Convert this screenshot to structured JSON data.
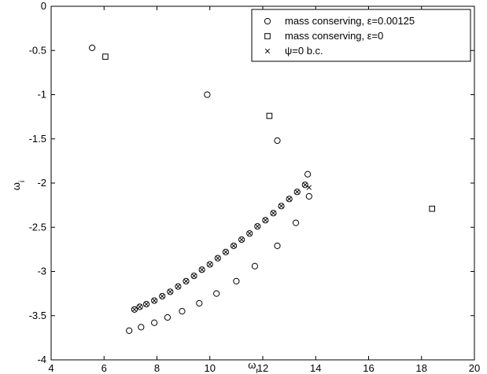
{
  "chart_data": {
    "type": "scatter",
    "xlabel": "ω",
    "xlabel_sub": "r",
    "ylabel": "ω",
    "ylabel_sub": "i",
    "xlim": [
      4,
      20
    ],
    "ylim": [
      -4,
      0
    ],
    "xticks": [
      4,
      6,
      8,
      10,
      12,
      14,
      16,
      18,
      20
    ],
    "yticks": [
      0,
      -0.5,
      -1,
      -1.5,
      -2,
      -2.5,
      -3,
      -3.5,
      -4
    ],
    "xtick_labels": [
      "4",
      "6",
      "8",
      "10",
      "12",
      "14",
      "16",
      "18",
      "20"
    ],
    "ytick_labels": [
      "0",
      "-0.5",
      "-1",
      "-1.5",
      "-2",
      "-2.5",
      "-3",
      "-3.5",
      "-4"
    ],
    "grid": false,
    "legend_position": "top-right",
    "series": [
      {
        "name": "mass conserving, ε=0.00125",
        "marker": "circle",
        "points": [
          [
            5.55,
            -0.47
          ],
          [
            9.9,
            -1.0
          ],
          [
            12.55,
            -1.52
          ],
          [
            13.7,
            -1.9
          ],
          [
            13.75,
            -2.15
          ],
          [
            13.25,
            -2.45
          ],
          [
            12.55,
            -2.71
          ],
          [
            11.7,
            -2.94
          ],
          [
            11.0,
            -3.11
          ],
          [
            10.25,
            -3.25
          ],
          [
            9.6,
            -3.36
          ],
          [
            8.95,
            -3.45
          ],
          [
            8.4,
            -3.52
          ],
          [
            7.9,
            -3.58
          ],
          [
            7.4,
            -3.63
          ],
          [
            6.95,
            -3.67
          ],
          [
            7.15,
            -3.43
          ],
          [
            7.35,
            -3.4
          ],
          [
            7.6,
            -3.37
          ],
          [
            7.9,
            -3.33
          ],
          [
            8.2,
            -3.28
          ],
          [
            8.5,
            -3.23
          ],
          [
            8.8,
            -3.17
          ],
          [
            9.1,
            -3.11
          ],
          [
            9.4,
            -3.05
          ],
          [
            9.7,
            -2.98
          ],
          [
            10.0,
            -2.92
          ],
          [
            10.3,
            -2.85
          ],
          [
            10.6,
            -2.78
          ],
          [
            10.9,
            -2.71
          ],
          [
            11.2,
            -2.64
          ],
          [
            11.5,
            -2.57
          ],
          [
            11.8,
            -2.49
          ],
          [
            12.1,
            -2.42
          ],
          [
            12.4,
            -2.34
          ],
          [
            12.7,
            -2.26
          ],
          [
            13.0,
            -2.18
          ],
          [
            13.3,
            -2.1
          ],
          [
            13.6,
            -2.02
          ]
        ]
      },
      {
        "name": "mass conserving, ε=0",
        "marker": "square",
        "points": [
          [
            6.05,
            -0.57
          ],
          [
            12.25,
            -1.24
          ],
          [
            18.4,
            -2.29
          ]
        ]
      },
      {
        "name": "ψ=0 b.c.",
        "marker": "x",
        "points": [
          [
            7.15,
            -3.43
          ],
          [
            7.35,
            -3.4
          ],
          [
            7.6,
            -3.37
          ],
          [
            7.9,
            -3.33
          ],
          [
            8.2,
            -3.28
          ],
          [
            8.5,
            -3.23
          ],
          [
            8.8,
            -3.17
          ],
          [
            9.1,
            -3.11
          ],
          [
            9.4,
            -3.05
          ],
          [
            9.7,
            -2.98
          ],
          [
            10.0,
            -2.92
          ],
          [
            10.3,
            -2.85
          ],
          [
            10.6,
            -2.78
          ],
          [
            10.9,
            -2.71
          ],
          [
            11.2,
            -2.64
          ],
          [
            11.5,
            -2.57
          ],
          [
            11.8,
            -2.49
          ],
          [
            12.1,
            -2.42
          ],
          [
            12.4,
            -2.34
          ],
          [
            12.7,
            -2.26
          ],
          [
            13.0,
            -2.18
          ],
          [
            13.3,
            -2.1
          ],
          [
            13.6,
            -2.02
          ],
          [
            13.75,
            -2.05
          ]
        ]
      }
    ]
  }
}
